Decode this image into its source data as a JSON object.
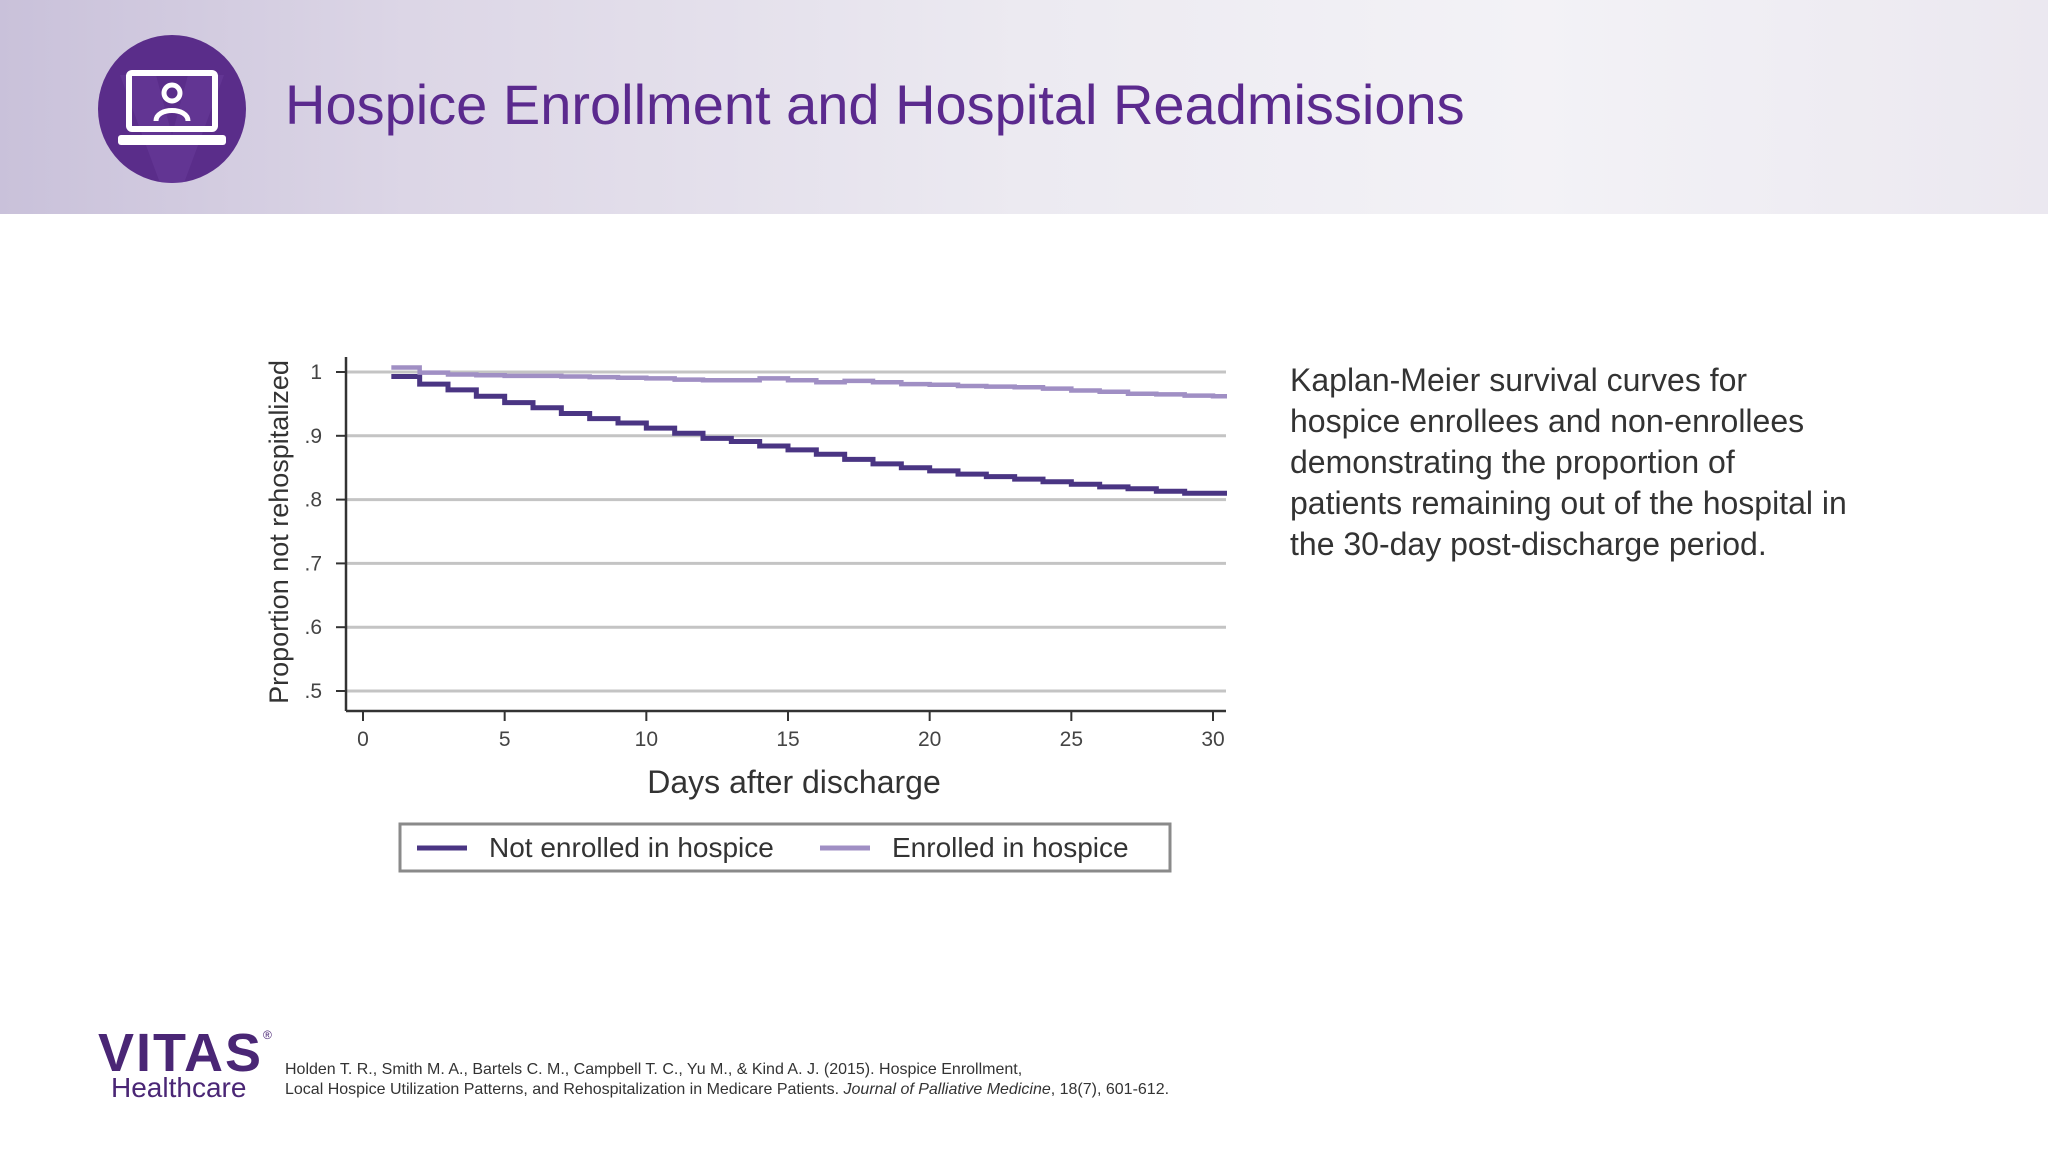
{
  "header": {
    "title": "Hospice Enrollment and Hospital Readmissions",
    "badge_icon": "laptop-person-icon",
    "accent_color": "#5b2a8e"
  },
  "chart_data": {
    "type": "line",
    "step": true,
    "xlabel": "Days after discharge",
    "ylabel": "Proportion not rehospitalized",
    "xlim": [
      0,
      30
    ],
    "ylim": [
      0.5,
      1.0
    ],
    "x_ticks": [
      0,
      5,
      10,
      15,
      20,
      25,
      30
    ],
    "x_tick_labels": [
      "0",
      "5",
      "10",
      "15",
      "20",
      "25",
      "30"
    ],
    "y_ticks": [
      0.5,
      0.6,
      0.7,
      0.8,
      0.9,
      1.0
    ],
    "y_tick_labels": [
      ".5",
      ".6",
      ".7",
      ".8",
      ".9",
      "1"
    ],
    "grid": "horizontal",
    "legend_position": "bottom",
    "series": [
      {
        "name": "Not enrolled in hospice",
        "color": "#4a3583",
        "x": [
          1,
          2,
          3,
          4,
          5,
          6,
          7,
          8,
          9,
          10,
          11,
          12,
          13,
          14,
          15,
          16,
          17,
          18,
          19,
          20,
          21,
          22,
          23,
          24,
          25,
          26,
          27,
          28,
          29,
          30
        ],
        "y": [
          0.993,
          0.981,
          0.972,
          0.962,
          0.952,
          0.944,
          0.935,
          0.927,
          0.92,
          0.912,
          0.904,
          0.896,
          0.891,
          0.884,
          0.878,
          0.871,
          0.863,
          0.856,
          0.85,
          0.845,
          0.84,
          0.836,
          0.832,
          0.828,
          0.824,
          0.82,
          0.817,
          0.813,
          0.81,
          0.81
        ]
      },
      {
        "name": "Enrolled in hospice",
        "color": "#a08fc4",
        "x": [
          1,
          2,
          3,
          4,
          5,
          6,
          7,
          8,
          9,
          10,
          11,
          12,
          13,
          14,
          15,
          16,
          17,
          18,
          19,
          20,
          21,
          22,
          23,
          24,
          25,
          26,
          27,
          28,
          29,
          30
        ],
        "y": [
          1.007,
          0.999,
          0.996,
          0.995,
          0.994,
          0.994,
          0.993,
          0.992,
          0.991,
          0.99,
          0.988,
          0.987,
          0.987,
          0.99,
          0.987,
          0.984,
          0.986,
          0.984,
          0.981,
          0.98,
          0.978,
          0.977,
          0.976,
          0.974,
          0.971,
          0.969,
          0.966,
          0.965,
          0.963,
          0.962
        ]
      }
    ]
  },
  "description": "Kaplan-Meier survival curves for hospice enrollees and non-enrollees demonstrating the proportion of patients remaining out of the hospital in the 30-day post-discharge period.",
  "logo": {
    "word": "VITAS",
    "mark": "®",
    "subtitle": "Healthcare"
  },
  "citation": {
    "line1": "Holden T. R., Smith M. A., Bartels C. M., Campbell T. C., Yu M., & Kind A. J. (2015). Hospice Enrollment,",
    "line2_plain": "Local Hospice Utilization Patterns, and Rehospitalization in Medicare Patients. ",
    "journal": "Journal of Palliative Medicine",
    "line2_tail": ", 18(7), 601-612."
  }
}
